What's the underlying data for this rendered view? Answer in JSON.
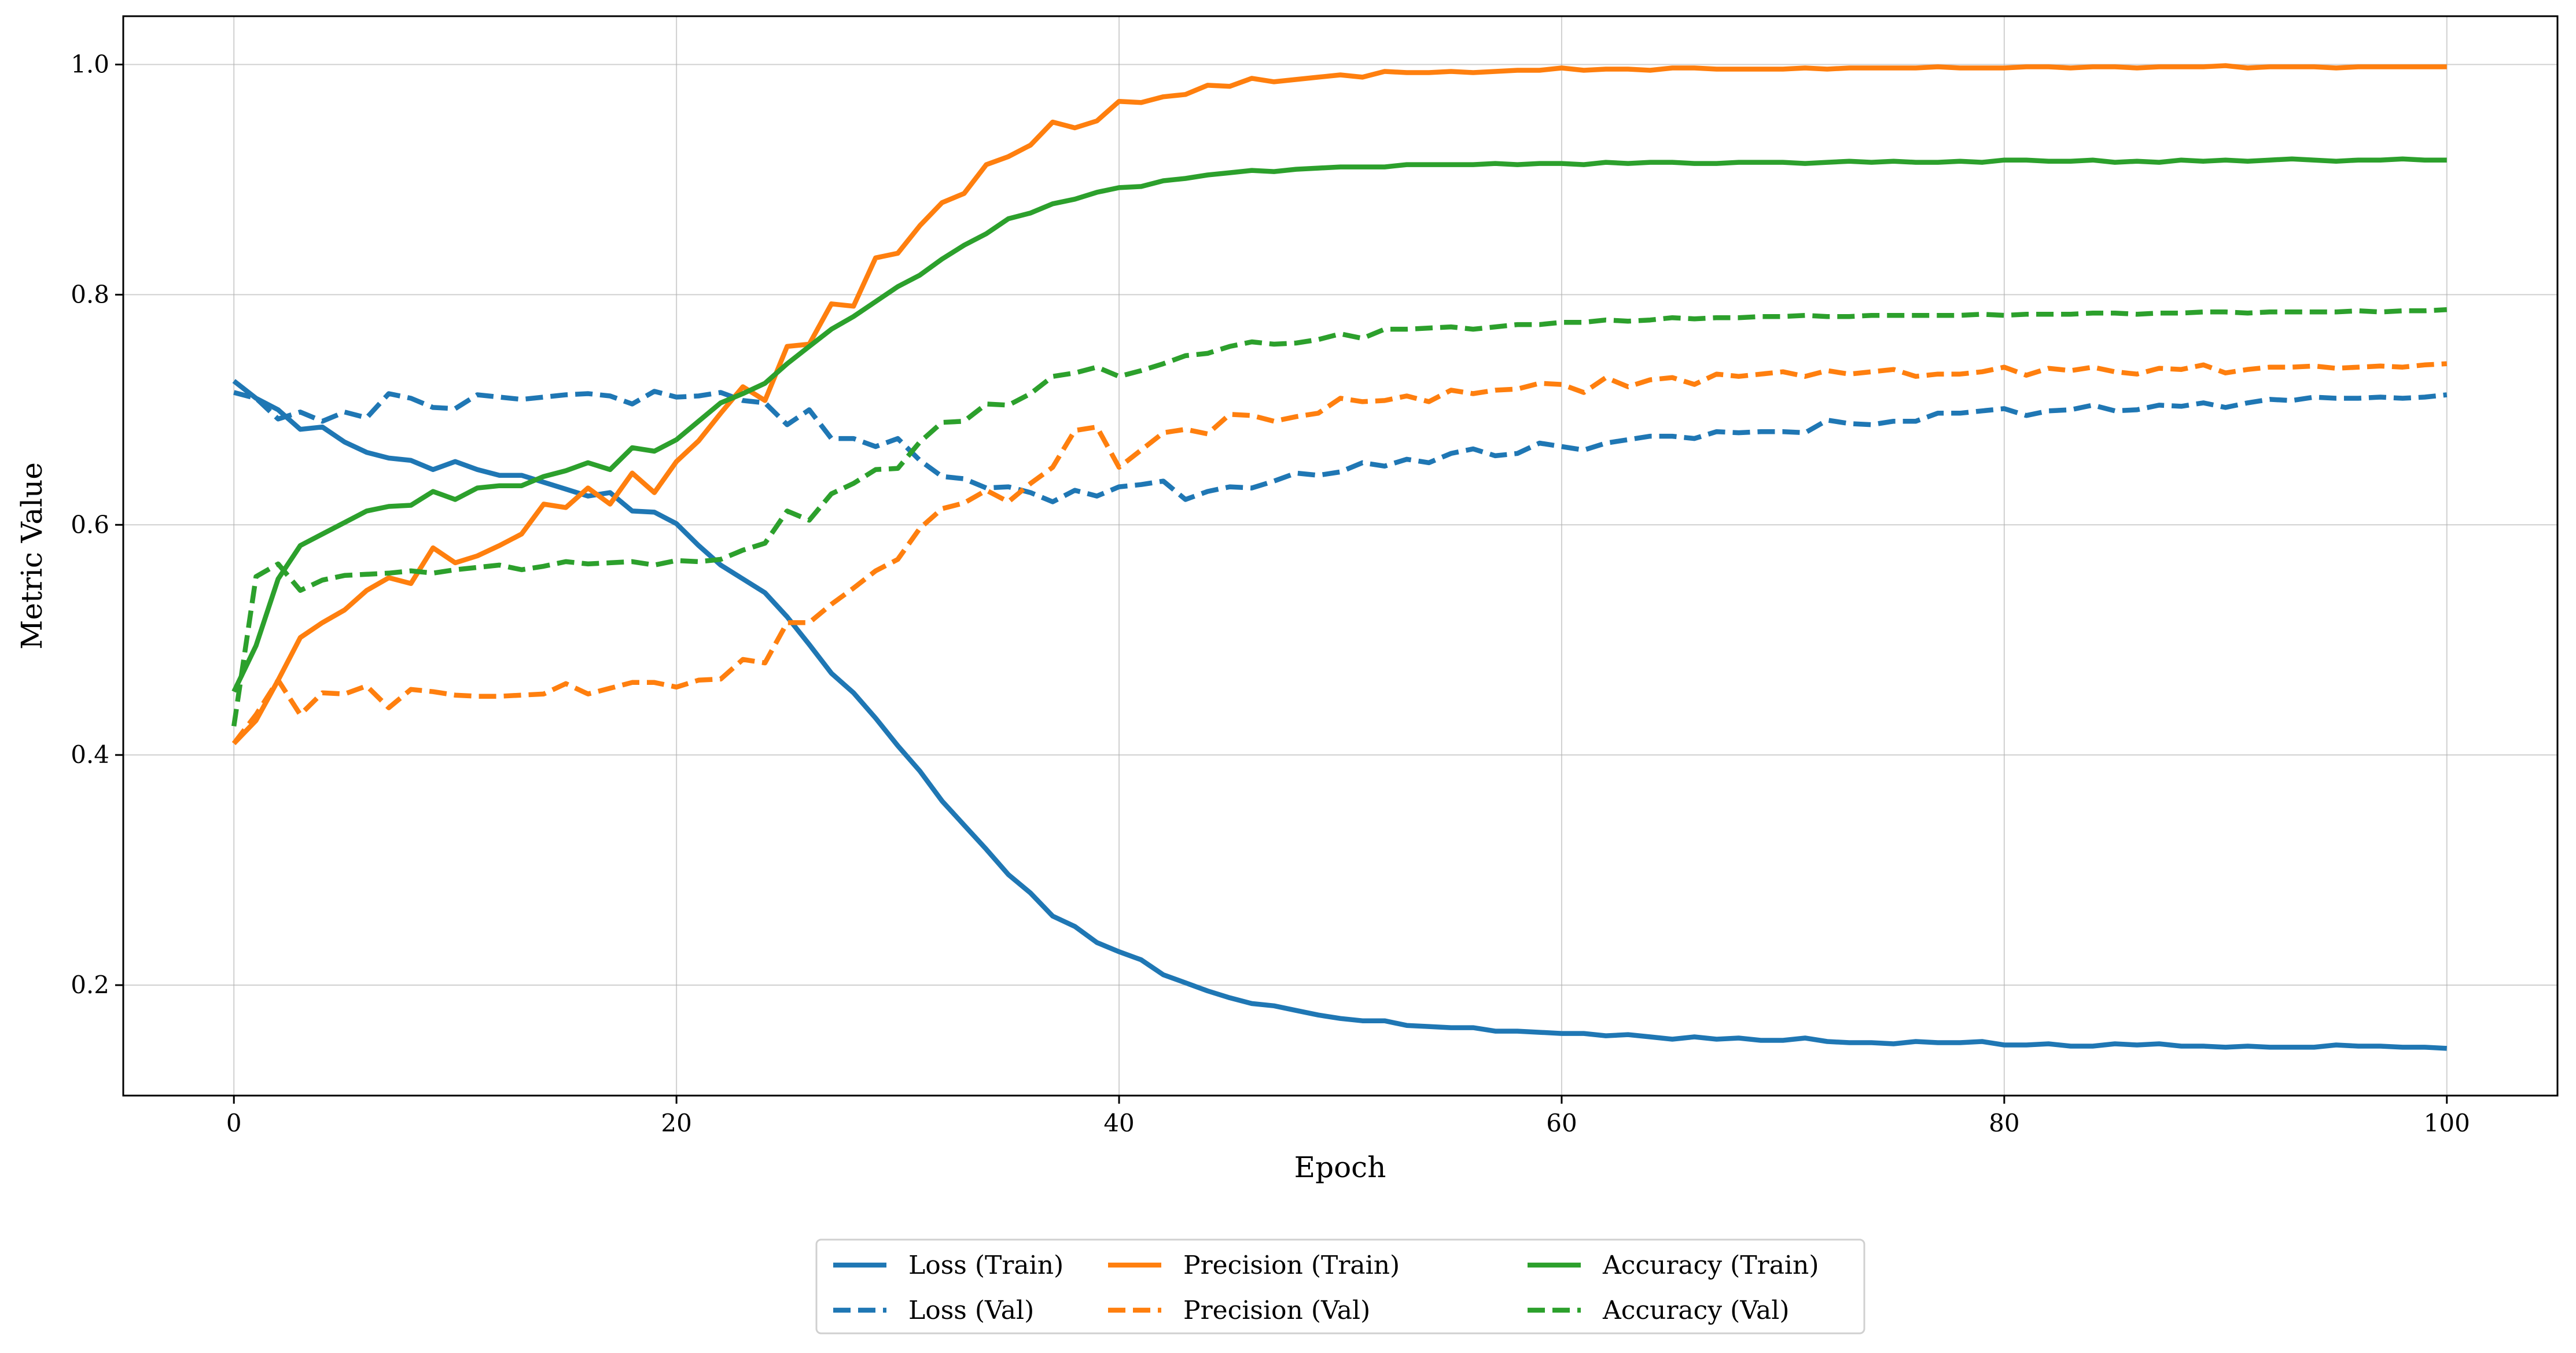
{
  "chart_data": {
    "type": "line",
    "title": "",
    "xlabel": "Epoch",
    "ylabel": "Metric Value",
    "xlim": [
      -5,
      105
    ],
    "ylim": [
      0.104,
      1.042
    ],
    "xticks": [
      0,
      20,
      40,
      60,
      80,
      100
    ],
    "yticks": [
      0.2,
      0.4,
      0.6,
      0.8,
      1.0
    ],
    "ytick_labels": [
      "0.2",
      "0.4",
      "0.6",
      "0.8",
      "1.0"
    ],
    "grid": true,
    "legend_placement": "bottom-center, below axes, 3 columns",
    "x": "epochs 0..100",
    "series": [
      {
        "name": "Loss (Train)",
        "color": "#1f77b4",
        "style": "solid",
        "values": [
          0.725,
          0.71,
          0.7,
          0.683,
          0.685,
          0.672,
          0.663,
          0.658,
          0.656,
          0.648,
          0.655,
          0.648,
          0.643,
          0.643,
          0.637,
          0.631,
          0.625,
          0.628,
          0.612,
          0.611,
          0.601,
          0.582,
          0.565,
          0.553,
          0.541,
          0.52,
          0.496,
          0.471,
          0.454,
          0.432,
          0.408,
          0.386,
          0.36,
          0.339,
          0.318,
          0.296,
          0.28,
          0.26,
          0.251,
          0.237,
          0.229,
          0.222,
          0.209,
          0.202,
          0.195,
          0.189,
          0.184,
          0.182,
          0.178,
          0.174,
          0.171,
          0.169,
          0.169,
          0.165,
          0.164,
          0.163,
          0.163,
          0.16,
          0.16,
          0.159,
          0.158,
          0.158,
          0.156,
          0.157,
          0.155,
          0.153,
          0.155,
          0.153,
          0.154,
          0.152,
          0.152,
          0.154,
          0.151,
          0.15,
          0.15,
          0.149,
          0.151,
          0.15,
          0.15,
          0.151,
          0.148,
          0.148,
          0.149,
          0.147,
          0.147,
          0.149,
          0.148,
          0.149,
          0.147,
          0.147,
          0.146,
          0.147,
          0.146,
          0.146,
          0.146,
          0.148,
          0.147,
          0.147,
          0.146,
          0.146,
          0.145
        ]
      },
      {
        "name": "Loss (Val)",
        "color": "#1f77b4",
        "style": "dashed",
        "values": [
          0.715,
          0.71,
          0.692,
          0.698,
          0.69,
          0.698,
          0.693,
          0.714,
          0.71,
          0.702,
          0.701,
          0.713,
          0.711,
          0.709,
          0.711,
          0.713,
          0.714,
          0.712,
          0.705,
          0.716,
          0.711,
          0.712,
          0.715,
          0.708,
          0.706,
          0.687,
          0.7,
          0.675,
          0.675,
          0.668,
          0.675,
          0.656,
          0.642,
          0.64,
          0.632,
          0.633,
          0.628,
          0.62,
          0.63,
          0.625,
          0.633,
          0.635,
          0.638,
          0.622,
          0.629,
          0.633,
          0.632,
          0.638,
          0.645,
          0.643,
          0.646,
          0.654,
          0.651,
          0.657,
          0.654,
          0.662,
          0.666,
          0.66,
          0.662,
          0.671,
          0.668,
          0.665,
          0.671,
          0.674,
          0.677,
          0.677,
          0.675,
          0.681,
          0.68,
          0.681,
          0.681,
          0.68,
          0.691,
          0.688,
          0.687,
          0.69,
          0.69,
          0.697,
          0.697,
          0.699,
          0.701,
          0.695,
          0.699,
          0.7,
          0.704,
          0.699,
          0.7,
          0.704,
          0.703,
          0.706,
          0.702,
          0.706,
          0.709,
          0.708,
          0.711,
          0.71,
          0.71,
          0.711,
          0.71,
          0.711,
          0.713
        ]
      },
      {
        "name": "Precision (Train)",
        "color": "#ff7f0e",
        "style": "solid",
        "values": [
          0.41,
          0.43,
          0.465,
          0.502,
          0.515,
          0.526,
          0.543,
          0.554,
          0.549,
          0.58,
          0.567,
          0.573,
          0.582,
          0.592,
          0.618,
          0.615,
          0.632,
          0.618,
          0.645,
          0.628,
          0.655,
          0.673,
          0.697,
          0.72,
          0.708,
          0.755,
          0.757,
          0.792,
          0.79,
          0.832,
          0.836,
          0.86,
          0.88,
          0.888,
          0.913,
          0.92,
          0.93,
          0.95,
          0.945,
          0.951,
          0.968,
          0.967,
          0.972,
          0.974,
          0.982,
          0.981,
          0.988,
          0.985,
          0.987,
          0.989,
          0.991,
          0.989,
          0.994,
          0.993,
          0.993,
          0.994,
          0.993,
          0.994,
          0.995,
          0.995,
          0.997,
          0.995,
          0.996,
          0.996,
          0.995,
          0.997,
          0.997,
          0.996,
          0.996,
          0.996,
          0.996,
          0.997,
          0.996,
          0.997,
          0.997,
          0.997,
          0.997,
          0.998,
          0.997,
          0.997,
          0.997,
          0.998,
          0.998,
          0.997,
          0.998,
          0.998,
          0.997,
          0.998,
          0.998,
          0.998,
          0.999,
          0.997,
          0.998,
          0.998,
          0.998,
          0.997,
          0.998,
          0.998,
          0.998,
          0.998,
          0.998
        ]
      },
      {
        "name": "Precision (Val)",
        "color": "#ff7f0e",
        "style": "dashed",
        "values": [
          0.41,
          0.435,
          0.465,
          0.435,
          0.454,
          0.453,
          0.46,
          0.441,
          0.457,
          0.455,
          0.452,
          0.451,
          0.451,
          0.452,
          0.453,
          0.462,
          0.453,
          0.458,
          0.463,
          0.463,
          0.459,
          0.465,
          0.466,
          0.483,
          0.48,
          0.515,
          0.515,
          0.531,
          0.545,
          0.56,
          0.57,
          0.597,
          0.614,
          0.619,
          0.63,
          0.62,
          0.636,
          0.65,
          0.682,
          0.685,
          0.65,
          0.665,
          0.68,
          0.683,
          0.679,
          0.696,
          0.695,
          0.69,
          0.694,
          0.697,
          0.71,
          0.707,
          0.708,
          0.712,
          0.707,
          0.717,
          0.714,
          0.717,
          0.718,
          0.723,
          0.722,
          0.715,
          0.728,
          0.72,
          0.726,
          0.728,
          0.722,
          0.731,
          0.729,
          0.731,
          0.733,
          0.729,
          0.734,
          0.731,
          0.733,
          0.735,
          0.729,
          0.731,
          0.731,
          0.733,
          0.737,
          0.73,
          0.736,
          0.734,
          0.737,
          0.733,
          0.731,
          0.736,
          0.735,
          0.739,
          0.732,
          0.735,
          0.737,
          0.737,
          0.738,
          0.736,
          0.737,
          0.738,
          0.737,
          0.739,
          0.74
        ]
      },
      {
        "name": "Accuracy (Train)",
        "color": "#2ca02c",
        "style": "solid",
        "values": [
          0.455,
          0.495,
          0.553,
          0.582,
          0.592,
          0.602,
          0.612,
          0.616,
          0.617,
          0.629,
          0.622,
          0.632,
          0.634,
          0.634,
          0.642,
          0.647,
          0.654,
          0.648,
          0.667,
          0.664,
          0.674,
          0.69,
          0.706,
          0.714,
          0.723,
          0.74,
          0.755,
          0.77,
          0.781,
          0.794,
          0.807,
          0.817,
          0.831,
          0.843,
          0.853,
          0.866,
          0.871,
          0.879,
          0.883,
          0.889,
          0.893,
          0.894,
          0.899,
          0.901,
          0.904,
          0.906,
          0.908,
          0.907,
          0.909,
          0.91,
          0.911,
          0.911,
          0.911,
          0.913,
          0.913,
          0.913,
          0.913,
          0.914,
          0.913,
          0.914,
          0.914,
          0.913,
          0.915,
          0.914,
          0.915,
          0.915,
          0.914,
          0.914,
          0.915,
          0.915,
          0.915,
          0.914,
          0.915,
          0.916,
          0.915,
          0.916,
          0.915,
          0.915,
          0.916,
          0.915,
          0.917,
          0.917,
          0.916,
          0.916,
          0.917,
          0.915,
          0.916,
          0.915,
          0.917,
          0.916,
          0.917,
          0.916,
          0.917,
          0.918,
          0.917,
          0.916,
          0.917,
          0.917,
          0.918,
          0.917,
          0.917
        ]
      },
      {
        "name": "Accuracy (Val)",
        "color": "#2ca02c",
        "style": "dashed",
        "values": [
          0.425,
          0.555,
          0.566,
          0.543,
          0.552,
          0.556,
          0.557,
          0.558,
          0.56,
          0.558,
          0.561,
          0.563,
          0.565,
          0.561,
          0.564,
          0.568,
          0.566,
          0.567,
          0.568,
          0.565,
          0.569,
          0.568,
          0.57,
          0.578,
          0.584,
          0.612,
          0.604,
          0.627,
          0.636,
          0.648,
          0.649,
          0.672,
          0.689,
          0.69,
          0.705,
          0.704,
          0.714,
          0.729,
          0.732,
          0.737,
          0.729,
          0.734,
          0.74,
          0.747,
          0.749,
          0.755,
          0.759,
          0.757,
          0.758,
          0.761,
          0.766,
          0.762,
          0.77,
          0.77,
          0.771,
          0.772,
          0.77,
          0.772,
          0.774,
          0.774,
          0.776,
          0.776,
          0.778,
          0.777,
          0.778,
          0.78,
          0.779,
          0.78,
          0.78,
          0.781,
          0.781,
          0.782,
          0.781,
          0.781,
          0.782,
          0.782,
          0.782,
          0.782,
          0.782,
          0.783,
          0.782,
          0.783,
          0.783,
          0.783,
          0.784,
          0.784,
          0.783,
          0.784,
          0.784,
          0.785,
          0.785,
          0.784,
          0.785,
          0.785,
          0.785,
          0.785,
          0.786,
          0.785,
          0.786,
          0.786,
          0.787
        ]
      }
    ]
  }
}
